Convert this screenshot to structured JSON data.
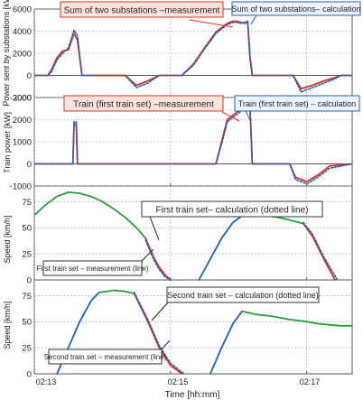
{
  "colors": {
    "measurement": "#d93025",
    "calculation": "#1f5fbf",
    "first_train_speed": "#2a9d3a",
    "second_train_speed": "#1f5fbf",
    "callout_red_fill": "#fde3de",
    "callout_blue_fill": "#eef4fd",
    "grid": "#9a9a9a"
  },
  "xaxis": {
    "label": "Time [hh:mm]",
    "range": [
      "02:13",
      "02:17:40"
    ],
    "tick_values": [
      "02:13",
      "02:15",
      "02:17"
    ],
    "tick_labels": [
      "02:13",
      "02:15",
      "02:17"
    ]
  },
  "chart_data": [
    {
      "type": "line",
      "ylabel": "Power sent by substations [kW]",
      "ylim": [
        -2000,
        6000
      ],
      "yticks": [
        -2000,
        0,
        2000,
        4000,
        6000
      ],
      "grid": true,
      "annotations": [
        {
          "text": "Sum of two substations –measurement",
          "style": "red-callout"
        },
        {
          "text": "Sum of two substations– calculation",
          "style": "blue-callout"
        }
      ],
      "series": [
        {
          "key": "measurement",
          "style": "solid",
          "color": "#d93025",
          "x": [
            "02:13:00",
            "02:13:12",
            "02:13:15",
            "02:13:20",
            "02:13:25",
            "02:13:30",
            "02:13:35",
            "02:13:38",
            "02:13:42",
            "02:13:47",
            "02:13:53",
            "02:14:00",
            "02:14:10",
            "02:14:20",
            "02:14:30",
            "02:14:40",
            "02:14:50",
            "02:15:00",
            "02:15:10",
            "02:15:20",
            "02:15:30",
            "02:15:40",
            "02:15:50",
            "02:15:55",
            "02:15:58",
            "02:16:02",
            "02:16:05",
            "02:16:08",
            "02:16:10",
            "02:16:12",
            "02:16:20",
            "02:16:30",
            "02:16:40",
            "02:16:48",
            "02:16:55",
            "02:17:05",
            "02:17:15",
            "02:17:25",
            "02:17:30",
            "02:17:40"
          ],
          "y": [
            0,
            0,
            500,
            1600,
            2200,
            2300,
            3800,
            3200,
            0,
            0,
            0,
            0,
            0,
            0,
            -900,
            -500,
            0,
            0,
            0,
            1000,
            2500,
            3900,
            4700,
            4900,
            4900,
            4800,
            4700,
            4800,
            1500,
            0,
            0,
            0,
            0,
            0,
            -1200,
            -900,
            -500,
            -200,
            0,
            0
          ]
        },
        {
          "key": "calculation",
          "style": "dotted",
          "color": "#1f5fbf",
          "x": [
            "02:13:00",
            "02:13:12",
            "02:13:15",
            "02:13:20",
            "02:13:25",
            "02:13:30",
            "02:13:35",
            "02:13:38",
            "02:13:42",
            "02:13:47",
            "02:13:53",
            "02:14:00",
            "02:14:10",
            "02:14:20",
            "02:14:30",
            "02:14:40",
            "02:14:50",
            "02:15:00",
            "02:15:10",
            "02:15:20",
            "02:15:30",
            "02:15:40",
            "02:15:50",
            "02:15:55",
            "02:15:58",
            "02:16:02",
            "02:16:05",
            "02:16:08",
            "02:16:10",
            "02:16:12",
            "02:16:20",
            "02:16:30",
            "02:16:40",
            "02:16:48",
            "02:16:55",
            "02:17:05",
            "02:17:15",
            "02:17:25",
            "02:17:30",
            "02:17:40"
          ],
          "y": [
            0,
            0,
            300,
            1400,
            2000,
            2500,
            4100,
            3600,
            0,
            0,
            0,
            0,
            0,
            0,
            -1100,
            -700,
            0,
            0,
            0,
            900,
            2400,
            3800,
            4600,
            4800,
            4800,
            4700,
            4800,
            4900,
            1800,
            0,
            0,
            0,
            0,
            0,
            -1500,
            -1100,
            -700,
            -300,
            0,
            0
          ]
        }
      ]
    },
    {
      "type": "line",
      "ylabel": "Train power [kW]",
      "ylim": [
        -1000,
        3000
      ],
      "yticks": [
        -1000,
        0,
        1000,
        2000,
        3000
      ],
      "grid": true,
      "annotations": [
        {
          "text": "Train (first train set) –measurement",
          "style": "red-callout"
        },
        {
          "text": "Train (first train set) – calculation",
          "style": "blue-callout"
        }
      ],
      "series": [
        {
          "key": "measurement",
          "style": "solid",
          "color": "#d93025",
          "x": [
            "02:13:00",
            "02:13:34",
            "02:13:35",
            "02:13:37",
            "02:13:38",
            "02:14:00",
            "02:14:30",
            "02:15:00",
            "02:15:30",
            "02:15:40",
            "02:15:45",
            "02:15:50",
            "02:16:00",
            "02:16:05",
            "02:16:10",
            "02:16:12",
            "02:16:30",
            "02:16:45",
            "02:16:50",
            "02:17:00",
            "02:17:10",
            "02:17:20",
            "02:17:40"
          ],
          "y": [
            0,
            0,
            1800,
            1800,
            0,
            0,
            0,
            0,
            0,
            0,
            1000,
            2000,
            2400,
            2500,
            2500,
            0,
            0,
            0,
            -600,
            -800,
            -500,
            -100,
            0
          ]
        },
        {
          "key": "calculation",
          "style": "dotted",
          "color": "#1f5fbf",
          "x": [
            "02:13:00",
            "02:13:34",
            "02:13:35",
            "02:13:37",
            "02:13:38",
            "02:14:00",
            "02:14:30",
            "02:15:00",
            "02:15:30",
            "02:15:40",
            "02:15:45",
            "02:15:50",
            "02:16:00",
            "02:16:05",
            "02:16:10",
            "02:16:12",
            "02:16:30",
            "02:16:45",
            "02:16:50",
            "02:17:00",
            "02:17:10",
            "02:17:20",
            "02:17:40"
          ],
          "y": [
            0,
            0,
            1900,
            1900,
            0,
            0,
            0,
            0,
            0,
            0,
            900,
            1900,
            2300,
            2500,
            2600,
            0,
            0,
            0,
            -700,
            -900,
            -600,
            -200,
            0
          ]
        }
      ]
    },
    {
      "type": "line",
      "ylabel": "Speed [km/h]",
      "ylim": [
        0,
        90
      ],
      "yticks": [
        0,
        25,
        50,
        75
      ],
      "grid": true,
      "annotations": [
        {
          "text": "First train set– calculation (dotted line)",
          "style": "plain-callout"
        },
        {
          "text": "First train set – measurement (line)",
          "style": "plain-callout"
        }
      ],
      "series": [
        {
          "key": "measurement",
          "style": "solid",
          "color": "#2a9d3a",
          "x": [
            "02:13:00",
            "02:13:10",
            "02:13:20",
            "02:13:30",
            "02:13:40",
            "02:13:50",
            "02:14:00",
            "02:14:10",
            "02:14:20",
            "02:14:30",
            "02:14:38"
          ],
          "y": [
            62,
            72,
            80,
            84,
            83,
            80,
            75,
            68,
            60,
            50,
            40
          ]
        },
        {
          "key": "measurement",
          "style": "solid",
          "color": "#d93025",
          "x": [
            "02:14:38",
            "02:14:45",
            "02:14:50",
            "02:14:55",
            "02:15:00"
          ],
          "y": [
            40,
            22,
            12,
            5,
            0
          ]
        },
        {
          "key": "calculation",
          "style": "dotted",
          "color": "#1f5fbf",
          "x": [
            "02:14:38",
            "02:14:45",
            "02:14:50",
            "02:14:55",
            "02:15:00"
          ],
          "y": [
            38,
            20,
            10,
            3,
            0
          ]
        },
        {
          "key": "measurement",
          "style": "solid",
          "color": "#1f5fbf",
          "x": [
            "02:15:25",
            "02:15:35",
            "02:15:45",
            "02:15:55",
            "02:16:05"
          ],
          "y": [
            0,
            20,
            40,
            55,
            63
          ]
        },
        {
          "key": "measurement",
          "style": "solid",
          "color": "#2a9d3a",
          "x": [
            "02:16:05",
            "02:16:20",
            "02:16:35",
            "02:16:50",
            "02:16:57"
          ],
          "y": [
            63,
            62,
            60,
            56,
            54
          ]
        },
        {
          "key": "measurement",
          "style": "solid",
          "color": "#d93025",
          "x": [
            "02:16:57",
            "02:17:05",
            "02:17:15",
            "02:17:25"
          ],
          "y": [
            54,
            42,
            20,
            0
          ]
        },
        {
          "key": "calculation",
          "style": "dotted",
          "color": "#1f5fbf",
          "x": [
            "02:16:57",
            "02:17:05",
            "02:17:15",
            "02:17:27"
          ],
          "y": [
            55,
            44,
            22,
            0
          ]
        }
      ]
    },
    {
      "type": "line",
      "ylabel": "Speed [km/h]",
      "ylim": [
        0,
        90
      ],
      "yticks": [
        0,
        25,
        50,
        75
      ],
      "grid": true,
      "annotations": [
        {
          "text": "Second train set – calculation (dotted line)",
          "style": "plain-callout"
        },
        {
          "text": "Second train set – measurement (line)",
          "style": "plain-callout"
        }
      ],
      "series": [
        {
          "key": "measurement",
          "style": "solid",
          "color": "#1f5fbf",
          "x": [
            "02:13:20",
            "02:13:30",
            "02:13:40",
            "02:13:50",
            "02:13:57"
          ],
          "y": [
            0,
            25,
            50,
            70,
            78
          ]
        },
        {
          "key": "measurement",
          "style": "solid",
          "color": "#2a9d3a",
          "x": [
            "02:13:57",
            "02:14:10",
            "02:14:20",
            "02:14:28"
          ],
          "y": [
            78,
            80,
            79,
            77
          ]
        },
        {
          "key": "measurement",
          "style": "solid",
          "color": "#d93025",
          "x": [
            "02:14:28",
            "02:14:40",
            "02:14:50",
            "02:15:00",
            "02:15:10"
          ],
          "y": [
            77,
            50,
            25,
            8,
            0
          ]
        },
        {
          "key": "calculation",
          "style": "dotted",
          "color": "#1f5fbf",
          "x": [
            "02:14:28",
            "02:14:40",
            "02:14:50",
            "02:15:00",
            "02:15:12"
          ],
          "y": [
            78,
            52,
            27,
            10,
            0
          ]
        },
        {
          "key": "measurement",
          "style": "solid",
          "color": "#1f5fbf",
          "x": [
            "02:15:35",
            "02:15:45",
            "02:15:55",
            "02:16:03"
          ],
          "y": [
            0,
            25,
            48,
            60
          ]
        },
        {
          "key": "measurement",
          "style": "solid",
          "color": "#2a9d3a",
          "x": [
            "02:16:03",
            "02:16:15",
            "02:16:30",
            "02:16:45",
            "02:17:00",
            "02:17:10",
            "02:17:20",
            "02:17:30",
            "02:17:40"
          ],
          "y": [
            60,
            57,
            55,
            52,
            50,
            48,
            47,
            46,
            46
          ]
        }
      ]
    }
  ]
}
